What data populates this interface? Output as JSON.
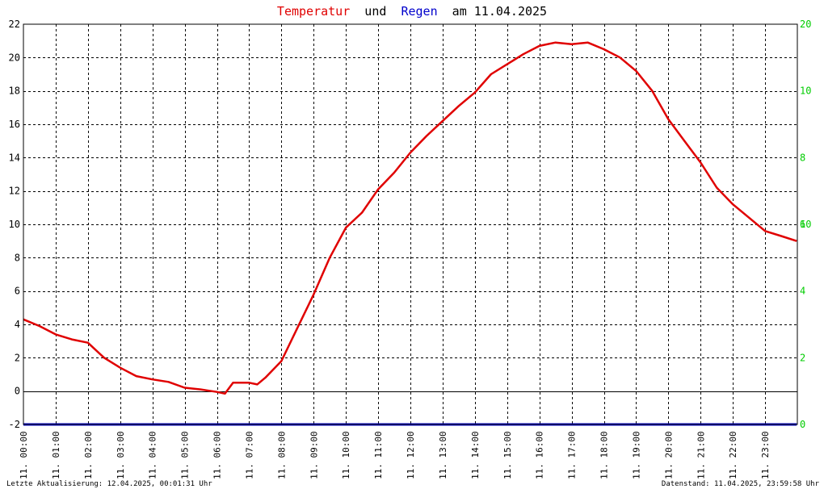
{
  "chart_data": {
    "type": "line",
    "title": {
      "part1": "Temperatur",
      "part2": " und ",
      "part3": "Regen",
      "part4": " am 11.04.2025"
    },
    "colors": {
      "temperature": "#e00000",
      "rain": "#0000cc",
      "right_axis": "#00cc00",
      "grid": "#000000"
    },
    "left_axis": {
      "min": -2,
      "max": 22,
      "step": 2,
      "ticks": [
        "-2",
        "0",
        "2",
        "4",
        "6",
        "8",
        "10",
        "12",
        "14",
        "16",
        "18",
        "20",
        "22"
      ]
    },
    "right_axis": {
      "min": 0,
      "max": 20,
      "ticks": [
        "0",
        "2",
        "4",
        "6",
        "8",
        "10",
        "10",
        "20"
      ]
    },
    "x_axis": {
      "hours": [
        "11. 00:00",
        "11. 01:00",
        "11. 02:00",
        "11. 03:00",
        "11. 04:00",
        "11. 05:00",
        "11. 06:00",
        "11. 07:00",
        "11. 08:00",
        "11. 09:00",
        "11. 10:00",
        "11. 11:00",
        "11. 12:00",
        "11. 13:00",
        "11. 14:00",
        "11. 15:00",
        "11. 16:00",
        "11. 17:00",
        "11. 18:00",
        "11. 19:00",
        "11. 20:00",
        "11. 21:00",
        "11. 22:00",
        "11. 23:00"
      ]
    },
    "grid": true,
    "series": [
      {
        "name": "Temperatur",
        "x_hours": [
          0,
          0.5,
          1,
          1.5,
          2,
          2.5,
          3,
          3.5,
          4,
          4.5,
          5,
          5.5,
          6,
          6.25,
          6.5,
          7,
          7.25,
          7.5,
          8,
          8.5,
          9,
          9.5,
          10,
          10.5,
          11,
          11.5,
          12,
          12.5,
          13,
          13.5,
          14,
          14.5,
          15,
          15.5,
          16,
          16.5,
          17,
          17.5,
          18,
          18.5,
          19,
          19.5,
          20,
          20.5,
          21,
          21.5,
          22,
          22.5,
          23,
          23.5,
          23.98
        ],
        "values": [
          4.3,
          3.9,
          3.4,
          3.1,
          2.9,
          2.0,
          1.4,
          0.9,
          0.7,
          0.55,
          0.2,
          0.1,
          -0.05,
          -0.15,
          0.5,
          0.5,
          0.4,
          0.8,
          1.8,
          3.8,
          5.8,
          8.0,
          9.8,
          10.7,
          12.1,
          13.1,
          14.3,
          15.3,
          16.2,
          17.1,
          17.9,
          19.0,
          19.6,
          20.2,
          20.7,
          20.9,
          20.8,
          20.9,
          20.5,
          20.0,
          19.2,
          18.0,
          16.3,
          15.0,
          13.7,
          12.2,
          11.2,
          10.4,
          9.6,
          9.3,
          9.0
        ]
      },
      {
        "name": "Regen",
        "x_hours": [
          0,
          23.98
        ],
        "values": [
          0,
          0
        ]
      }
    ]
  },
  "footer": {
    "left": "Letzte Aktualisierung: 12.04.2025, 00:01:31 Uhr",
    "right": "Datenstand: 11.04.2025, 23:59:58 Uhr"
  }
}
